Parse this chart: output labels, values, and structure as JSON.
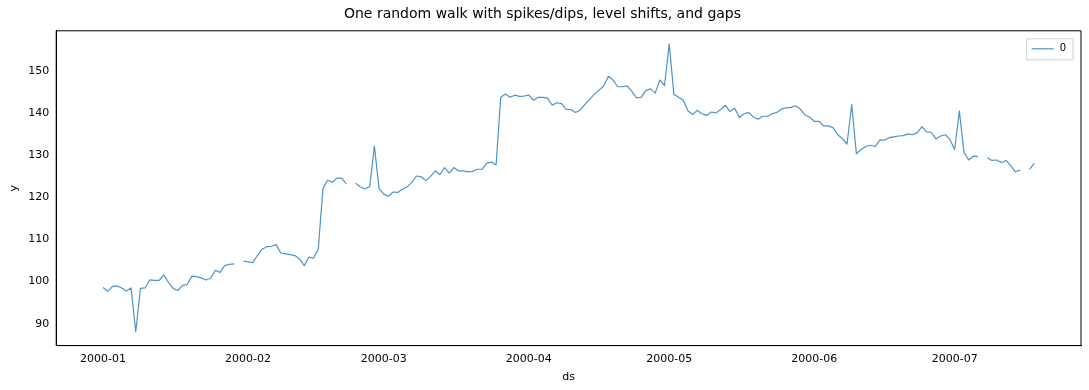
{
  "chart_data": {
    "type": "line",
    "title": "One random walk with spikes/dips, level shifts, and gaps",
    "xlabel": "ds",
    "ylabel": "y",
    "x": [
      "2000-01-01",
      "2000-01-02",
      "2000-01-03",
      "2000-01-04",
      "2000-01-05",
      "2000-01-06",
      "2000-01-07",
      "2000-01-08",
      "2000-01-09",
      "2000-01-10",
      "2000-01-11",
      "2000-01-12",
      "2000-01-13",
      "2000-01-14",
      "2000-01-15",
      "2000-01-16",
      "2000-01-17",
      "2000-01-18",
      "2000-01-19",
      "2000-01-20",
      "2000-01-21",
      "2000-01-22",
      "2000-01-23",
      "2000-01-24",
      "2000-01-25",
      "2000-01-26",
      "2000-01-27",
      "2000-01-28",
      "2000-01-29",
      "2000-01-30",
      "2000-01-31",
      "2000-02-01",
      "2000-02-02",
      "2000-02-03",
      "2000-02-04",
      "2000-02-05",
      "2000-02-06",
      "2000-02-07",
      "2000-02-08",
      "2000-02-09",
      "2000-02-10",
      "2000-02-11",
      "2000-02-12",
      "2000-02-13",
      "2000-02-14",
      "2000-02-15",
      "2000-02-16",
      "2000-02-17",
      "2000-02-18",
      "2000-02-19",
      "2000-02-20",
      "2000-02-21",
      "2000-02-22",
      "2000-02-23",
      "2000-02-24",
      "2000-02-25",
      "2000-02-26",
      "2000-02-27",
      "2000-02-28",
      "2000-02-29",
      "2000-03-01",
      "2000-03-02",
      "2000-03-03",
      "2000-03-04",
      "2000-03-05",
      "2000-03-06",
      "2000-03-07",
      "2000-03-08",
      "2000-03-09",
      "2000-03-10",
      "2000-03-11",
      "2000-03-12",
      "2000-03-13",
      "2000-03-14",
      "2000-03-15",
      "2000-03-16",
      "2000-03-17",
      "2000-03-18",
      "2000-03-19",
      "2000-03-20",
      "2000-03-21",
      "2000-03-22",
      "2000-03-23",
      "2000-03-24",
      "2000-03-25",
      "2000-03-26",
      "2000-03-27",
      "2000-03-28",
      "2000-03-29",
      "2000-03-30",
      "2000-03-31",
      "2000-04-01",
      "2000-04-02",
      "2000-04-03",
      "2000-04-04",
      "2000-04-05",
      "2000-04-06",
      "2000-04-07",
      "2000-04-08",
      "2000-04-09",
      "2000-04-10",
      "2000-04-11",
      "2000-04-12",
      "2000-04-13",
      "2000-04-14",
      "2000-04-15",
      "2000-04-16",
      "2000-04-17",
      "2000-04-18",
      "2000-04-19",
      "2000-04-20",
      "2000-04-21",
      "2000-04-22",
      "2000-04-23",
      "2000-04-24",
      "2000-04-25",
      "2000-04-26",
      "2000-04-27",
      "2000-04-28",
      "2000-04-29",
      "2000-04-30",
      "2000-05-01",
      "2000-05-02",
      "2000-05-03",
      "2000-05-04",
      "2000-05-05",
      "2000-05-06",
      "2000-05-07",
      "2000-05-08",
      "2000-05-09",
      "2000-05-10",
      "2000-05-11",
      "2000-05-12",
      "2000-05-13",
      "2000-05-14",
      "2000-05-15",
      "2000-05-16",
      "2000-05-17",
      "2000-05-18",
      "2000-05-19",
      "2000-05-20",
      "2000-05-21",
      "2000-05-22",
      "2000-05-23",
      "2000-05-24",
      "2000-05-25",
      "2000-05-26",
      "2000-05-27",
      "2000-05-28",
      "2000-05-29",
      "2000-05-30",
      "2000-05-31",
      "2000-06-01",
      "2000-06-02",
      "2000-06-03",
      "2000-06-04",
      "2000-06-05",
      "2000-06-06",
      "2000-06-07",
      "2000-06-08",
      "2000-06-09",
      "2000-06-10",
      "2000-06-11",
      "2000-06-12",
      "2000-06-13",
      "2000-06-14",
      "2000-06-15",
      "2000-06-16",
      "2000-06-17",
      "2000-06-18",
      "2000-06-19",
      "2000-06-20",
      "2000-06-21",
      "2000-06-22",
      "2000-06-23",
      "2000-06-24",
      "2000-06-25",
      "2000-06-26",
      "2000-06-27",
      "2000-06-28",
      "2000-06-29",
      "2000-06-30",
      "2000-07-01",
      "2000-07-02",
      "2000-07-03",
      "2000-07-04",
      "2000-07-05",
      "2000-07-06",
      "2000-07-07",
      "2000-07-08",
      "2000-07-09",
      "2000-07-10",
      "2000-07-11",
      "2000-07-12",
      "2000-07-13",
      "2000-07-14",
      "2000-07-15",
      "2000-07-16",
      "2000-07-17",
      "2000-07-18"
    ],
    "series": [
      {
        "name": "0",
        "color": "#4c93c9",
        "values": [
          98.6,
          97.7,
          98.8,
          99.0,
          98.5,
          97.8,
          98.5,
          88.1,
          98.4,
          98.5,
          100.4,
          100.3,
          100.3,
          101.6,
          99.8,
          98.4,
          97.9,
          99.1,
          99.3,
          101.3,
          101.2,
          100.9,
          100.4,
          100.8,
          102.7,
          102.2,
          103.8,
          104.1,
          104.2,
          null,
          104.9,
          104.7,
          104.5,
          106.2,
          107.7,
          108.3,
          108.4,
          108.8,
          106.8,
          106.6,
          106.4,
          106.2,
          105.4,
          103.8,
          105.8,
          105.6,
          107.7,
          122.1,
          124.1,
          123.6,
          124.6,
          124.6,
          123.2,
          null,
          123.4,
          122.5,
          122.0,
          122.6,
          132.2,
          122.1,
          120.8,
          120.3,
          121.3,
          121.2,
          122.0,
          122.5,
          123.6,
          125.1,
          124.9,
          124.0,
          125.0,
          126.3,
          125.4,
          127.1,
          125.8,
          127.1,
          126.3,
          126.3,
          126.1,
          126.2,
          126.7,
          126.7,
          128.1,
          128.4,
          127.7,
          143.8,
          144.6,
          143.8,
          144.3,
          144.0,
          144.1,
          144.3,
          143.1,
          143.8,
          143.8,
          143.6,
          141.9,
          142.5,
          142.3,
          140.9,
          140.9,
          140.2,
          140.8,
          142.1,
          143.3,
          144.5,
          145.5,
          146.5,
          148.8,
          147.9,
          146.3,
          146.3,
          146.5,
          145.2,
          143.7,
          143.8,
          145.4,
          145.8,
          144.8,
          147.9,
          146.6,
          156.5,
          144.5,
          143.8,
          143.1,
          140.6,
          139.7,
          140.7,
          139.9,
          139.5,
          140.3,
          140.1,
          140.9,
          141.9,
          140.4,
          141.2,
          139.0,
          139.9,
          140.2,
          139.1,
          138.6,
          139.3,
          139.3,
          139.9,
          140.2,
          141.0,
          141.3,
          141.4,
          141.8,
          141.0,
          139.6,
          139.1,
          138.1,
          138.1,
          137.0,
          137.0,
          136.6,
          134.9,
          134.0,
          132.7,
          142.1,
          130.4,
          131.4,
          132.1,
          132.4,
          132.1,
          133.6,
          133.6,
          134.2,
          134.4,
          134.6,
          134.7,
          135.1,
          134.9,
          135.4,
          136.8,
          135.6,
          135.5,
          133.9,
          134.6,
          134.9,
          133.8,
          131.4,
          140.5,
          130.7,
          128.9,
          129.8,
          129.7,
          null,
          129.4,
          128.8,
          128.9,
          128.3,
          128.8,
          127.5,
          126.1,
          126.5,
          null,
          126.7,
          128.1
        ]
      }
    ],
    "xlim": [
      "1999-12-22",
      "2000-07-28"
    ],
    "xticks": [
      {
        "value": "2000-01-01",
        "label": "2000-01"
      },
      {
        "value": "2000-02-01",
        "label": "2000-02"
      },
      {
        "value": "2000-03-01",
        "label": "2000-03"
      },
      {
        "value": "2000-04-01",
        "label": "2000-04"
      },
      {
        "value": "2000-05-01",
        "label": "2000-05"
      },
      {
        "value": "2000-06-01",
        "label": "2000-06"
      },
      {
        "value": "2000-07-01",
        "label": "2000-07"
      }
    ],
    "ylim": [
      84.8,
      159.6
    ],
    "yticks": [
      90,
      100,
      110,
      120,
      130,
      140,
      150
    ],
    "grid": false,
    "legend": "top right"
  }
}
